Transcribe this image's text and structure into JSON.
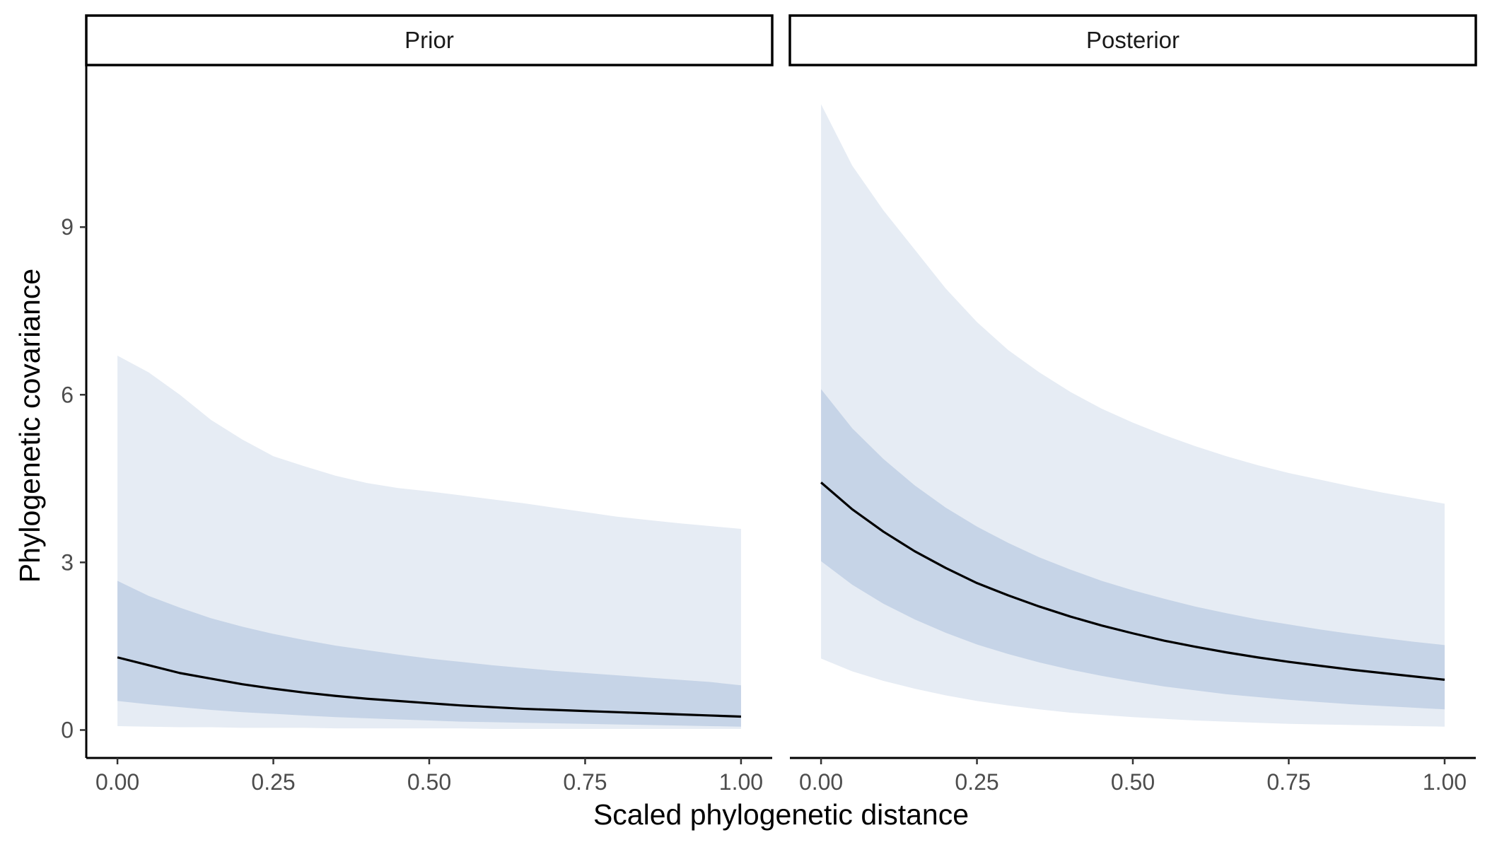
{
  "chart_data": {
    "type": "area",
    "xlabel": "Scaled phylogenetic distance",
    "ylabel": "Phylogenetic covariance",
    "xlim": [
      -0.05,
      1.05
    ],
    "ylim": [
      -0.5,
      11.9
    ],
    "x_ticks": [
      0.0,
      0.25,
      0.5,
      0.75,
      1.0
    ],
    "x_tick_labels": [
      "0.00",
      "0.25",
      "0.50",
      "0.75",
      "1.00"
    ],
    "y_ticks": [
      0,
      3,
      6,
      9
    ],
    "y_tick_labels": [
      "0",
      "3",
      "6",
      "9"
    ],
    "grid": false,
    "legend": "none",
    "colors": {
      "outer_band": "#e6ecf4",
      "inner_band": "#c6d4e7",
      "median_line": "#000000",
      "axis": "#000000",
      "strip_fill": "#ffffff"
    },
    "x": [
      0.0,
      0.05,
      0.1,
      0.15,
      0.2,
      0.25,
      0.3,
      0.35,
      0.4,
      0.45,
      0.5,
      0.55,
      0.6,
      0.65,
      0.7,
      0.75,
      0.8,
      0.85,
      0.9,
      0.95,
      1.0
    ],
    "panels": [
      {
        "title": "Prior",
        "median": [
          1.3,
          1.16,
          1.02,
          0.92,
          0.82,
          0.74,
          0.67,
          0.61,
          0.56,
          0.52,
          0.48,
          0.44,
          0.41,
          0.38,
          0.36,
          0.34,
          0.32,
          0.3,
          0.28,
          0.26,
          0.24
        ],
        "inner_lower": [
          0.52,
          0.46,
          0.41,
          0.36,
          0.32,
          0.29,
          0.26,
          0.23,
          0.21,
          0.19,
          0.17,
          0.15,
          0.14,
          0.13,
          0.12,
          0.11,
          0.1,
          0.09,
          0.08,
          0.07,
          0.06
        ],
        "inner_upper": [
          2.67,
          2.4,
          2.19,
          2.0,
          1.85,
          1.72,
          1.61,
          1.51,
          1.43,
          1.35,
          1.28,
          1.22,
          1.16,
          1.11,
          1.06,
          1.02,
          0.98,
          0.94,
          0.9,
          0.86,
          0.8
        ],
        "outer_lower": [
          0.07,
          0.06,
          0.05,
          0.05,
          0.04,
          0.04,
          0.04,
          0.03,
          0.03,
          0.03,
          0.03,
          0.03,
          0.02,
          0.02,
          0.02,
          0.02,
          0.02,
          0.02,
          0.02,
          0.02,
          0.02
        ],
        "outer_upper": [
          6.7,
          6.4,
          6.0,
          5.55,
          5.2,
          4.9,
          4.72,
          4.55,
          4.42,
          4.33,
          4.27,
          4.2,
          4.13,
          4.06,
          3.98,
          3.9,
          3.82,
          3.76,
          3.7,
          3.65,
          3.6
        ]
      },
      {
        "title": "Posterior",
        "median": [
          4.43,
          3.95,
          3.55,
          3.2,
          2.9,
          2.63,
          2.41,
          2.21,
          2.03,
          1.87,
          1.73,
          1.6,
          1.49,
          1.39,
          1.3,
          1.22,
          1.15,
          1.08,
          1.02,
          0.96,
          0.9
        ],
        "inner_lower": [
          3.02,
          2.6,
          2.26,
          1.98,
          1.74,
          1.53,
          1.36,
          1.21,
          1.08,
          0.97,
          0.87,
          0.78,
          0.71,
          0.64,
          0.59,
          0.54,
          0.5,
          0.46,
          0.43,
          0.4,
          0.37
        ],
        "inner_upper": [
          6.1,
          5.4,
          4.85,
          4.38,
          3.98,
          3.64,
          3.35,
          3.09,
          2.87,
          2.67,
          2.5,
          2.35,
          2.21,
          2.09,
          1.98,
          1.89,
          1.8,
          1.72,
          1.65,
          1.58,
          1.52
        ],
        "outer_lower": [
          1.28,
          1.05,
          0.88,
          0.74,
          0.62,
          0.52,
          0.44,
          0.37,
          0.31,
          0.27,
          0.23,
          0.2,
          0.17,
          0.15,
          0.13,
          0.11,
          0.1,
          0.09,
          0.08,
          0.07,
          0.06
        ],
        "outer_upper": [
          11.2,
          10.1,
          9.3,
          8.6,
          7.9,
          7.3,
          6.8,
          6.4,
          6.05,
          5.75,
          5.5,
          5.28,
          5.08,
          4.9,
          4.74,
          4.6,
          4.48,
          4.36,
          4.25,
          4.15,
          4.05
        ]
      }
    ]
  }
}
